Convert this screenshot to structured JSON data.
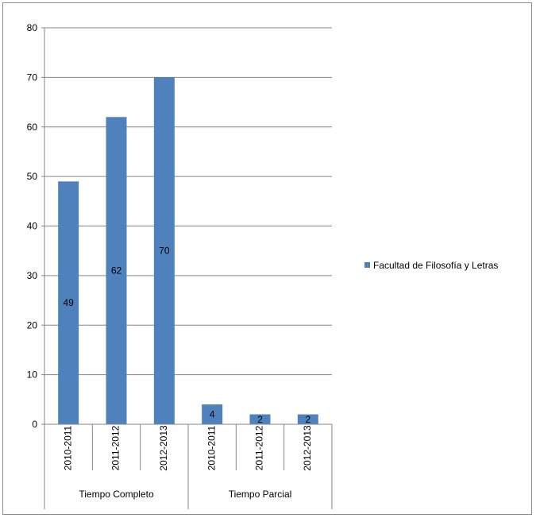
{
  "chart_data": {
    "type": "bar",
    "categories": [
      {
        "group": "Tiempo Completo",
        "label": "2010-2011"
      },
      {
        "group": "Tiempo Completo",
        "label": "2011-2012"
      },
      {
        "group": "Tiempo Completo",
        "label": "2012-2013"
      },
      {
        "group": "Tiempo Parcial",
        "label": "2010-2011"
      },
      {
        "group": "Tiempo Parcial",
        "label": "2011-2012"
      },
      {
        "group": "Tiempo Parcial",
        "label": "2012-2013"
      }
    ],
    "groups": [
      "Tiempo Completo",
      "Tiempo Parcial"
    ],
    "series": [
      {
        "name": "Facultad de Filosofía y Letras",
        "values": [
          49,
          62,
          70,
          4,
          2,
          2
        ],
        "color": "#4f81bd"
      }
    ],
    "data_labels": [
      "49",
      "62",
      "70",
      "4",
      "2",
      "2"
    ],
    "ylim": [
      0,
      80
    ],
    "yticks": [
      0,
      10,
      20,
      30,
      40,
      50,
      60,
      70,
      80
    ],
    "grid": true,
    "legend": "right",
    "title": "",
    "xlabel": "",
    "ylabel": ""
  }
}
